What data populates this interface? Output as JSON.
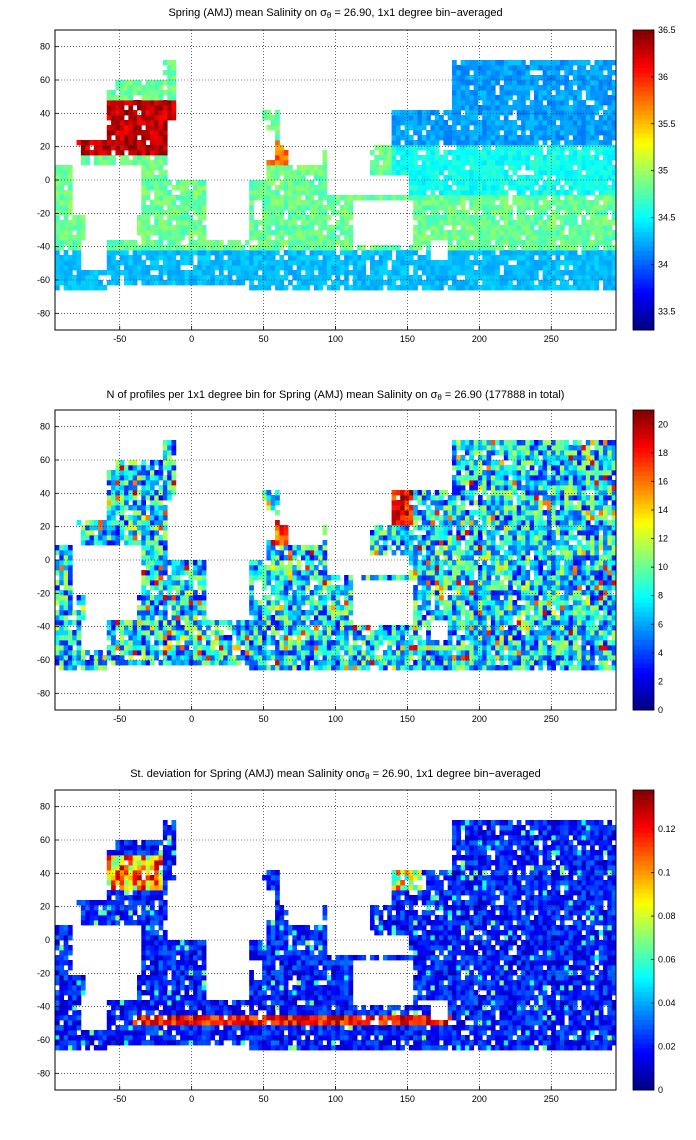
{
  "chart_data": [
    {
      "type": "heatmap",
      "title_before": "Spring (AMJ) mean Salinity on ",
      "sigma_sym": "σ",
      "sigma_sub": "θ",
      "title_after": " = 26.90, 1x1 degree bin−averaged",
      "xlim": [
        -95,
        295
      ],
      "ylim": [
        -90,
        90
      ],
      "xticks": [
        -50,
        0,
        50,
        100,
        150,
        200,
        250
      ],
      "yticks": [
        -80,
        -60,
        -40,
        -20,
        0,
        20,
        40,
        60,
        80
      ],
      "grid": true,
      "colormap": "jet",
      "colorbar_range": [
        33.3,
        36.5
      ],
      "colorbar_ticks": [
        33.5,
        34,
        34.5,
        35,
        35.5,
        36,
        36.5
      ],
      "field": "salinity"
    },
    {
      "type": "heatmap",
      "title_before": "N of profiles per 1x1 degree bin for Spring (AMJ) mean Salinity on ",
      "sigma_sym": "σ",
      "sigma_sub": "θ",
      "title_after": " = 26.90 (177888 in total)",
      "xlim": [
        -95,
        295
      ],
      "ylim": [
        -90,
        90
      ],
      "xticks": [
        -50,
        0,
        50,
        100,
        150,
        200,
        250
      ],
      "yticks": [
        -80,
        -60,
        -40,
        -20,
        0,
        20,
        40,
        60,
        80
      ],
      "grid": true,
      "colormap": "jet",
      "colorbar_range": [
        0,
        21
      ],
      "colorbar_ticks": [
        0,
        2,
        4,
        6,
        8,
        10,
        12,
        14,
        16,
        18,
        20
      ],
      "field": "count"
    },
    {
      "type": "heatmap",
      "title_before": "St. deviation for Spring (AMJ) mean Salinity on",
      "sigma_sym": "σ",
      "sigma_sub": "θ",
      "title_after": " = 26.90, 1x1 degree bin−averaged",
      "xlim": [
        -95,
        295
      ],
      "ylim": [
        -90,
        90
      ],
      "xticks": [
        -50,
        0,
        50,
        100,
        150,
        200,
        250
      ],
      "yticks": [
        -80,
        -60,
        -40,
        -20,
        0,
        20,
        40,
        60,
        80
      ],
      "grid": true,
      "colormap": "jet",
      "colorbar_range": [
        0,
        0.138
      ],
      "colorbar_ticks": [
        0,
        0.02,
        0.04,
        0.06,
        0.08,
        0.1,
        0.12
      ],
      "field": "stdev"
    }
  ]
}
